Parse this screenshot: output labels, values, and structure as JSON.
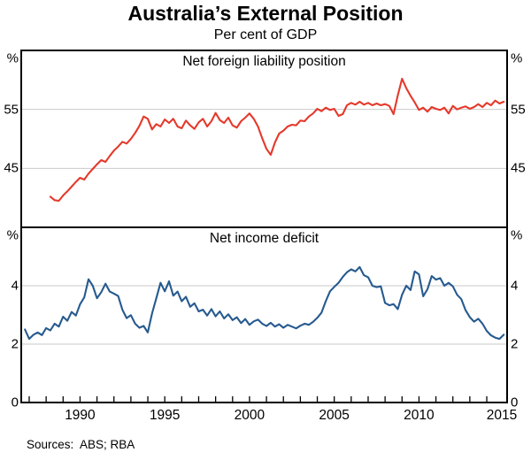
{
  "header": {
    "title": "Australia’s External Position",
    "subtitle": "Per cent of GDP"
  },
  "footer": {
    "sources": "Sources:  ABS; RBA"
  },
  "style": {
    "accent_red": "#E5392B",
    "accent_blue": "#265A8F",
    "grid": "#C9C9C9",
    "frame": "#000000",
    "background": "#FFFFFF"
  },
  "x_axis": {
    "range": [
      1986.53,
      2015.2
    ],
    "tick_interval_years": 1,
    "first_tick_year": 1987,
    "last_tick_year": 2014,
    "label_years": [
      1990,
      1995,
      2000,
      2005,
      2010,
      2015
    ],
    "labels": [
      "1990",
      "1995",
      "2000",
      "2005",
      "2010",
      "2015"
    ]
  },
  "chart_data": [
    {
      "type": "line",
      "panel": "top",
      "title": "Net foreign liability position",
      "unit": "%",
      "ylim": [
        35,
        65
      ],
      "yticks": [
        45,
        55
      ],
      "grid": true,
      "series": [
        {
          "name": "Net foreign liability position",
          "color": "#E5392B",
          "start_year": 1988.25,
          "step_years": 0.25,
          "values": [
            40.2,
            39.6,
            39.5,
            40.4,
            41.1,
            41.9,
            42.7,
            43.4,
            43.1,
            44.1,
            44.9,
            45.7,
            46.4,
            46.1,
            47.1,
            48.0,
            48.7,
            49.5,
            49.2,
            50.0,
            51.0,
            52.2,
            53.8,
            53.4,
            51.6,
            52.5,
            52.1,
            53.3,
            52.7,
            53.4,
            52.1,
            51.8,
            53.1,
            52.3,
            51.7,
            52.8,
            53.4,
            52.1,
            53.0,
            54.4,
            53.2,
            52.7,
            53.6,
            52.3,
            51.9,
            53.0,
            53.6,
            54.3,
            53.4,
            52.1,
            50.1,
            48.3,
            47.3,
            49.4,
            50.9,
            51.4,
            52.1,
            52.4,
            52.3,
            53.1,
            53.0,
            53.8,
            54.3,
            55.1,
            54.7,
            55.3,
            54.9,
            55.1,
            53.9,
            54.2,
            55.7,
            56.1,
            55.8,
            56.3,
            55.8,
            56.1,
            55.7,
            56.0,
            55.7,
            55.9,
            55.6,
            54.2,
            57.4,
            60.2,
            58.6,
            57.3,
            56.2,
            54.9,
            55.3,
            54.6,
            55.4,
            55.1,
            54.9,
            55.3,
            54.3,
            55.6,
            55.0,
            55.3,
            55.5,
            55.1,
            55.4,
            55.9,
            55.4,
            56.1,
            55.7,
            56.5,
            56.0,
            56.3
          ]
        }
      ]
    },
    {
      "type": "line",
      "panel": "bottom",
      "title": "Net income deficit",
      "unit": "%",
      "ylim": [
        0,
        6
      ],
      "yticks": [
        0,
        2,
        4
      ],
      "grid": true,
      "series": [
        {
          "name": "Net income deficit",
          "color": "#265A8F",
          "start_year": 1986.75,
          "step_years": 0.25,
          "values": [
            2.5,
            2.18,
            2.32,
            2.4,
            2.31,
            2.55,
            2.47,
            2.7,
            2.6,
            2.94,
            2.8,
            3.1,
            2.98,
            3.36,
            3.6,
            4.22,
            4.0,
            3.57,
            3.78,
            4.07,
            3.8,
            3.73,
            3.65,
            3.18,
            2.89,
            2.99,
            2.7,
            2.56,
            2.62,
            2.4,
            3.05,
            3.57,
            4.1,
            3.81,
            4.15,
            3.66,
            3.8,
            3.47,
            3.62,
            3.28,
            3.4,
            3.12,
            3.18,
            2.98,
            3.2,
            2.95,
            3.12,
            2.88,
            3.02,
            2.82,
            2.92,
            2.72,
            2.86,
            2.66,
            2.78,
            2.84,
            2.7,
            2.62,
            2.73,
            2.6,
            2.68,
            2.56,
            2.66,
            2.6,
            2.54,
            2.63,
            2.7,
            2.66,
            2.76,
            2.9,
            3.08,
            3.47,
            3.81,
            3.96,
            4.1,
            4.3,
            4.46,
            4.56,
            4.49,
            4.64,
            4.36,
            4.29,
            4.0,
            3.95,
            3.98,
            3.41,
            3.33,
            3.37,
            3.2,
            3.69,
            4.0,
            3.85,
            4.49,
            4.39,
            3.64,
            3.88,
            4.33,
            4.21,
            4.26,
            4.0,
            4.1,
            3.98,
            3.69,
            3.54,
            3.16,
            2.92,
            2.77,
            2.87,
            2.7,
            2.45,
            2.3,
            2.22,
            2.18,
            2.32
          ]
        }
      ]
    }
  ]
}
